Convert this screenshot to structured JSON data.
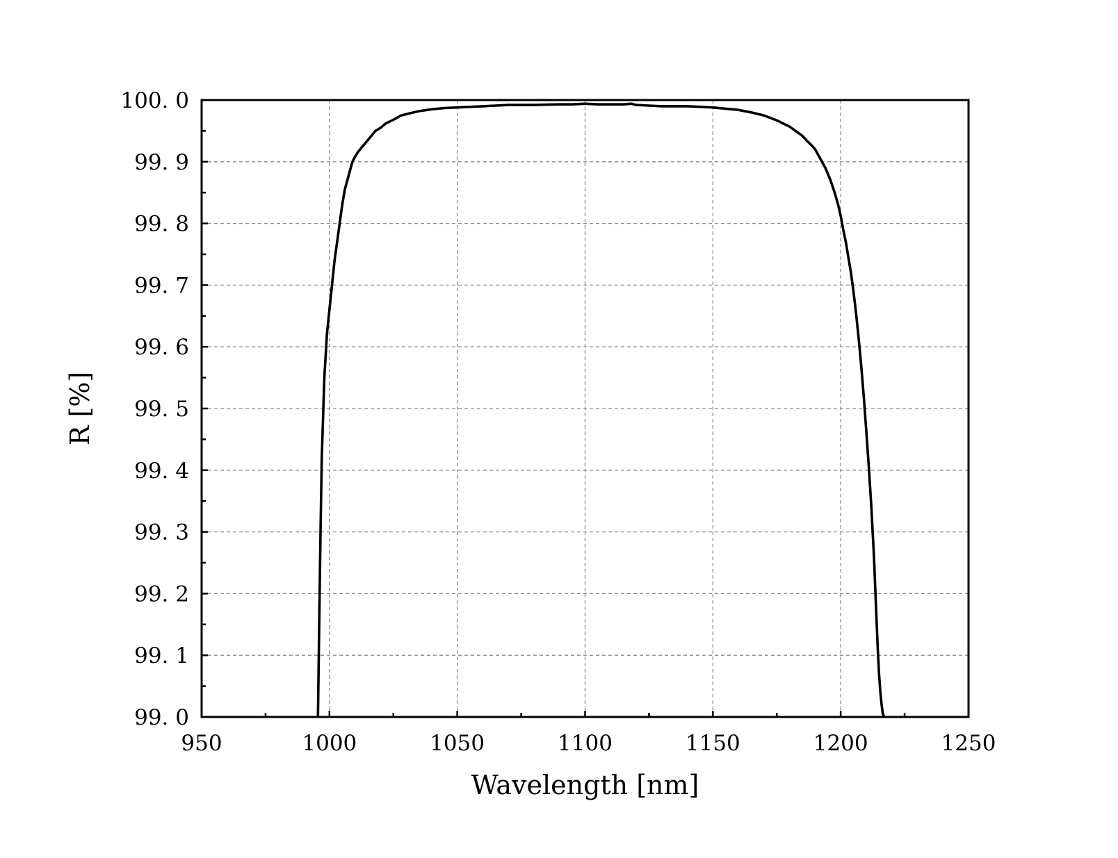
{
  "chart_data": {
    "type": "line",
    "title": "",
    "xlabel": "Wavelength [nm]",
    "ylabel": "R [%]",
    "xlim": [
      950,
      1250
    ],
    "ylim": [
      99.0,
      100.0
    ],
    "x_ticks": [
      950,
      1000,
      1050,
      1100,
      1150,
      1200,
      1250
    ],
    "x_tick_labels": [
      "950",
      "1000",
      "1050",
      "1100",
      "1150",
      "1200",
      "1250"
    ],
    "y_ticks": [
      99.0,
      99.1,
      99.2,
      99.3,
      99.4,
      99.5,
      99.6,
      99.7,
      99.8,
      99.9,
      100.0
    ],
    "y_tick_labels": [
      "99. 0",
      "99. 1",
      "99. 2",
      "99. 3",
      "99. 4",
      "99. 5",
      "99. 6",
      "99. 7",
      "99. 8",
      "99. 9",
      "100. 0"
    ],
    "grid": true,
    "grid_style": "dashed",
    "legend": "none",
    "colors": {
      "line": "#000000",
      "grid": "#8a8a8a",
      "frame": "#000000",
      "background": "#ffffff"
    },
    "series": [
      {
        "x": [
          995.5,
          996.0,
          996.5,
          997.0,
          998.0,
          999.0,
          1000.0,
          1001.0,
          1002.0,
          1003.0,
          1004.0,
          1005.0,
          1006.0,
          1007.0,
          1008.0,
          1009.0,
          1010.0,
          1011.0,
          1012.0,
          1013.0,
          1014.0,
          1015.0,
          1016.0,
          1018.0,
          1020.0,
          1022.0,
          1025.0,
          1028.0,
          1030.0,
          1035.0,
          1040.0,
          1045.0,
          1050.0,
          1055.0,
          1060.0,
          1065.0,
          1070.0,
          1080.0,
          1090.0,
          1095.0,
          1100.0,
          1105.0,
          1110.0,
          1115.0,
          1118.0,
          1120.0,
          1125.0,
          1130.0,
          1135.0,
          1140.0,
          1145.0,
          1150.0,
          1155.0,
          1160.0,
          1165.0,
          1170.0,
          1175.0,
          1180.0,
          1183.0,
          1185.0,
          1187.0,
          1189.0,
          1190.0,
          1192.0,
          1194.0,
          1195.0,
          1196.0,
          1197.0,
          1198.0,
          1199.0,
          1200.0,
          1201.0,
          1202.0,
          1203.0,
          1204.0,
          1205.0,
          1206.0,
          1207.0,
          1208.0,
          1209.0,
          1210.0,
          1211.0,
          1212.0,
          1212.5,
          1213.0,
          1213.5,
          1214.0,
          1214.5,
          1215.0,
          1215.5,
          1216.0,
          1216.5,
          1217.0
        ],
        "y": [
          99.0,
          99.15,
          99.3,
          99.42,
          99.55,
          99.62,
          99.66,
          99.7,
          99.74,
          99.77,
          99.8,
          99.83,
          99.855,
          99.87,
          99.885,
          99.9,
          99.908,
          99.915,
          99.92,
          99.925,
          99.93,
          99.935,
          99.94,
          99.95,
          99.955,
          99.962,
          99.968,
          99.975,
          99.977,
          99.982,
          99.985,
          99.987,
          99.988,
          99.989,
          99.99,
          99.991,
          99.992,
          99.992,
          99.993,
          99.993,
          99.994,
          99.993,
          99.993,
          99.993,
          99.994,
          99.992,
          99.991,
          99.99,
          99.99,
          99.99,
          99.989,
          99.988,
          99.986,
          99.984,
          99.98,
          99.975,
          99.967,
          99.957,
          99.948,
          99.942,
          99.933,
          99.925,
          99.92,
          99.905,
          99.89,
          99.88,
          99.87,
          99.858,
          99.845,
          99.83,
          99.812,
          99.79,
          99.77,
          99.745,
          99.72,
          99.69,
          99.655,
          99.615,
          99.57,
          99.52,
          99.465,
          99.405,
          99.34,
          99.3,
          99.26,
          99.21,
          99.16,
          99.11,
          99.07,
          99.04,
          99.02,
          99.005,
          99.0
        ]
      }
    ]
  }
}
